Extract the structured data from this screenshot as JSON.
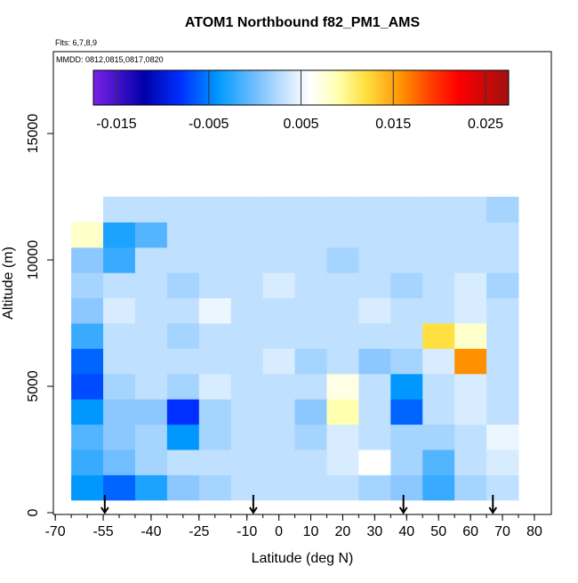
{
  "chart_data": {
    "type": "heatmap",
    "title": "ATOM1 Northbound f82_PM1_AMS",
    "subtitle": "Flts: 6,7,8,9",
    "annotation": "MMDD: 0812,0815,0817,0820",
    "x_label": "Latitude (deg N)",
    "y_label": "Altitude (m)",
    "xlim": [
      -70.6,
      85.3
    ],
    "ylim": [
      -70,
      18240
    ],
    "xticks": [
      -70,
      -55,
      -40,
      -25,
      -10,
      0,
      10,
      20,
      30,
      40,
      50,
      60,
      70,
      80
    ],
    "xminor_ticks": [
      -70,
      -65,
      -60,
      -55,
      -50,
      -45,
      -40,
      -35,
      -30,
      -25,
      -20,
      -15,
      -10,
      -5,
      0,
      5,
      10,
      15,
      20,
      25,
      30,
      35,
      40,
      45,
      50,
      55,
      60,
      65,
      70,
      75,
      80
    ],
    "yticks": [
      0,
      5000,
      10000,
      15000
    ],
    "x_edges": [
      -65,
      -55,
      -45,
      -35,
      -25,
      -15,
      -5,
      5,
      15,
      25,
      35,
      45,
      55,
      65,
      75
    ],
    "y_edges": [
      500,
      1500,
      2500,
      3500,
      4500,
      5500,
      6500,
      7500,
      8500,
      9500,
      10500,
      11500,
      12500
    ],
    "z": [
      [
        -0.004,
        -0.006,
        -0.003,
        0.001,
        0.002,
        0.003,
        0.003,
        0.003,
        0.003,
        0.002,
        0.001,
        -0.002,
        0.002,
        0.003
      ],
      [
        -0.002,
        0,
        0.002,
        0.003,
        0.003,
        0.003,
        0.003,
        0.003,
        0.004,
        0.006,
        0.002,
        -0.001,
        0.003,
        0.004
      ],
      [
        -0.001,
        0.001,
        0.002,
        -0.004,
        0.002,
        0.003,
        0.003,
        0.002,
        0.004,
        0.003,
        0.002,
        0.002,
        0.003,
        0.005
      ],
      [
        -0.004,
        0.001,
        0.001,
        -0.008,
        0.002,
        0.003,
        0.003,
        0.001,
        0.009,
        0.003,
        -0.006,
        0.003,
        0.004,
        0.003
      ],
      [
        -0.007,
        0.002,
        0.003,
        0.002,
        0.004,
        0.003,
        0.003,
        0.003,
        0.007,
        0.003,
        -0.004,
        0.003,
        0.004,
        0.003
      ],
      [
        -0.006,
        0.003,
        0.003,
        0.003,
        0.003,
        0.003,
        0.004,
        0.002,
        0.003,
        0.001,
        0.002,
        0.004,
        0.016,
        0.003
      ],
      [
        -0.002,
        0.003,
        0.003,
        0.002,
        0.003,
        0.003,
        0.003,
        0.003,
        0.003,
        0.003,
        0.003,
        0.012,
        0.008,
        0.003
      ],
      [
        0.001,
        0.004,
        0.003,
        0.003,
        0.005,
        0.003,
        0.003,
        0.003,
        0.003,
        0.004,
        0.003,
        0.003,
        0.004,
        0.003
      ],
      [
        0.002,
        0.003,
        0.003,
        0.002,
        0.003,
        0.003,
        0.004,
        0.003,
        0.003,
        0.003,
        0.002,
        0.003,
        0.004,
        0.002
      ],
      [
        0.001,
        -0.002,
        0.003,
        0.003,
        0.003,
        0.003,
        0.003,
        0.003,
        0.002,
        0.003,
        0.003,
        0.003,
        0.003,
        0.003
      ],
      [
        0.008,
        -0.003,
        -0.001,
        0.003,
        0.003,
        0.003,
        0.003,
        0.003,
        0.003,
        0.003,
        0.003,
        0.003,
        0.003,
        0.003
      ],
      [
        null,
        0.003,
        0.003,
        0.003,
        0.003,
        0.003,
        0.003,
        0.003,
        0.003,
        0.003,
        0.003,
        0.003,
        0.003,
        0.002
      ]
    ],
    "arrows_x": [
      -54.5,
      -8,
      39,
      67
    ],
    "colorbar": {
      "lim": [
        -0.0175,
        0.0275
      ],
      "ticks": [
        -0.015,
        -0.005,
        0.005,
        0.015,
        0.025
      ],
      "stops": [
        {
          "value": -0.0175,
          "color": "#7a22e6"
        },
        {
          "value": -0.012,
          "color": "#0000a8"
        },
        {
          "value": -0.008,
          "color": "#0030ff"
        },
        {
          "value": -0.004,
          "color": "#0098ff"
        },
        {
          "value": 0.001,
          "color": "#8cc8ff"
        },
        {
          "value": 0.004,
          "color": "#d8ecff"
        },
        {
          "value": 0.006,
          "color": "#ffffff"
        },
        {
          "value": 0.009,
          "color": "#ffff b0"
        },
        {
          "value": 0.012,
          "color": "#ffe040"
        },
        {
          "value": 0.016,
          "color": "#ff9000"
        },
        {
          "value": 0.019,
          "color": "#ff4000"
        },
        {
          "value": 0.022,
          "color": "#ff0000"
        },
        {
          "value": 0.0275,
          "color": "#a01010"
        }
      ]
    }
  }
}
